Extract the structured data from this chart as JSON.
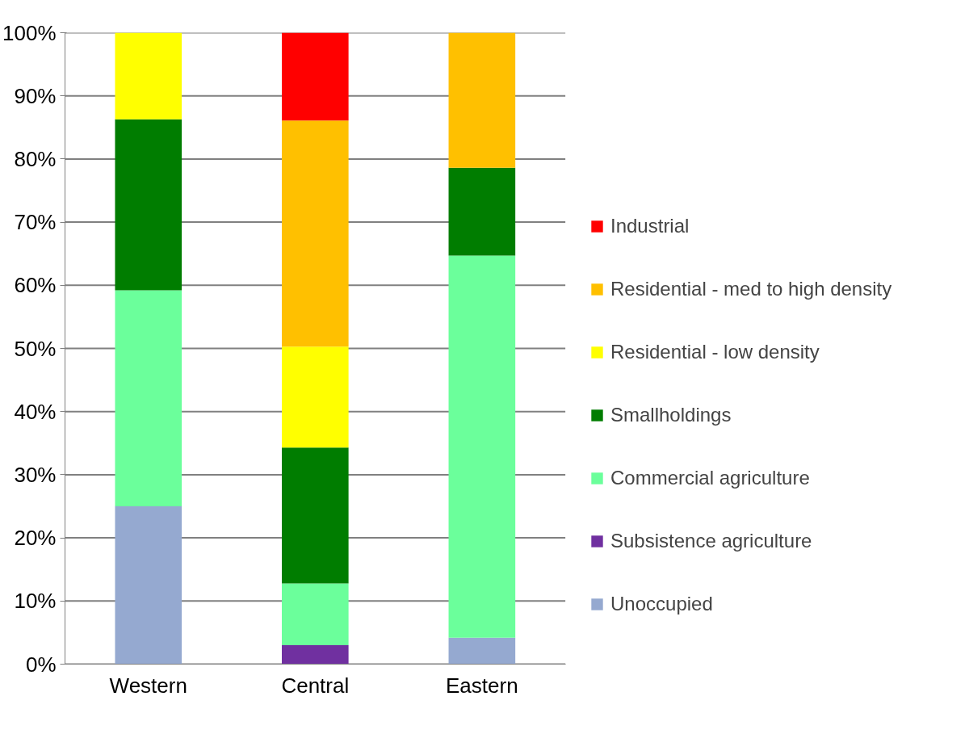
{
  "chart_data": {
    "type": "bar",
    "stacked": true,
    "categories": [
      "Western",
      "Central",
      "Eastern"
    ],
    "series": [
      {
        "name": "Unoccupied",
        "color": "#95a9d0",
        "values": [
          25,
          null,
          4.2
        ]
      },
      {
        "name": "Subsistence agriculture",
        "color": "#7030a0",
        "values": [
          null,
          3.0,
          null
        ]
      },
      {
        "name": "Commercial agriculture",
        "color": "#6bff9b",
        "values": [
          34.2,
          9.8,
          60.5
        ]
      },
      {
        "name": "Smallholdings",
        "color": "#007d00",
        "values": [
          27.1,
          21.5,
          13.9
        ]
      },
      {
        "name": "Residential - low density",
        "color": "#ffff00",
        "values": [
          13.7,
          16.0,
          null
        ]
      },
      {
        "name": "Residential - med to high density",
        "color": "#ffc000",
        "values": [
          null,
          35.8,
          21.4
        ]
      },
      {
        "name": "Industrial",
        "color": "#ff0000",
        "values": [
          null,
          13.9,
          null
        ]
      }
    ],
    "ylim": [
      0,
      100
    ],
    "yticks": [
      {
        "value": 0,
        "label": "0%"
      },
      {
        "value": 10,
        "label": "10%"
      },
      {
        "value": 20,
        "label": "20%"
      },
      {
        "value": 30,
        "label": "30%"
      },
      {
        "value": 40,
        "label": "40%"
      },
      {
        "value": 50,
        "label": "50%"
      },
      {
        "value": 60,
        "label": "60%"
      },
      {
        "value": 70,
        "label": "70%"
      },
      {
        "value": 80,
        "label": "80%"
      },
      {
        "value": 90,
        "label": "90%"
      },
      {
        "value": 100,
        "label": "100%"
      }
    ],
    "grid": "y",
    "legend": "right"
  }
}
